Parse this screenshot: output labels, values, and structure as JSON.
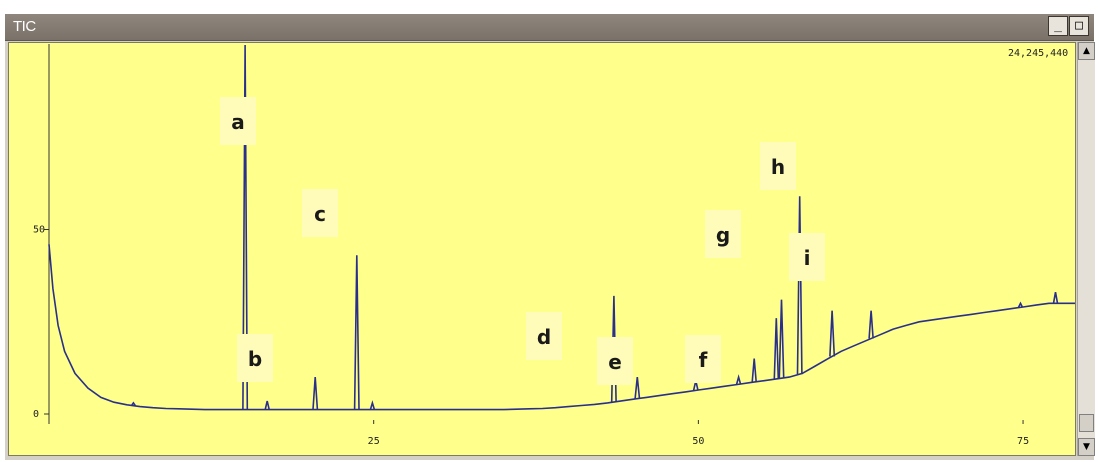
{
  "window": {
    "title": "TIC",
    "buttons": [
      "_",
      "□"
    ],
    "max_intensity_label": "24,245,440"
  },
  "colors": {
    "plot_bg": "#ffff8c",
    "trace": "#2a2f8a",
    "titlebar": "#857d73"
  },
  "chart_data": {
    "type": "line",
    "title": "",
    "xlabel": "",
    "ylabel": "",
    "xlim": [
      0,
      79
    ],
    "ylim": [
      0,
      100
    ],
    "x_ticks": [
      "25",
      "50",
      "75"
    ],
    "y_ticks": [
      "0",
      "50"
    ],
    "grid": false,
    "series": [
      {
        "x": [
          0,
          0.3,
          0.7,
          1.2,
          2,
          3,
          4,
          5,
          6,
          7,
          8,
          9,
          10,
          11,
          12,
          13,
          14,
          15,
          16,
          17,
          18,
          19,
          20,
          21,
          22,
          23,
          24,
          25,
          26,
          27,
          28,
          29,
          30,
          31,
          32,
          33,
          34,
          35,
          36,
          37,
          38,
          39,
          40,
          41,
          42,
          43,
          44,
          45,
          46,
          47,
          48,
          49,
          50,
          51,
          52,
          53,
          54,
          55,
          56,
          57,
          58,
          59,
          60,
          61,
          62,
          63,
          64,
          65,
          66,
          67,
          68,
          69,
          70,
          71,
          72,
          73,
          74,
          75,
          76,
          77,
          78,
          79
        ],
        "y": [
          46,
          34,
          24,
          17,
          11,
          7,
          4.5,
          3.2,
          2.5,
          2,
          1.7,
          1.5,
          1.4,
          1.3,
          1.2,
          1.2,
          1.2,
          1.2,
          1.2,
          1.2,
          1.2,
          1.2,
          1.2,
          1.2,
          1.2,
          1.2,
          1.2,
          1.2,
          1.2,
          1.2,
          1.2,
          1.2,
          1.2,
          1.2,
          1.2,
          1.2,
          1.2,
          1.2,
          1.3,
          1.4,
          1.5,
          1.7,
          2,
          2.3,
          2.6,
          3,
          3.5,
          4,
          4.5,
          5,
          5.5,
          6,
          6.5,
          7,
          7.5,
          8,
          8.5,
          9,
          9.5,
          10,
          11,
          13,
          15,
          17,
          18.5,
          20,
          21.5,
          23,
          24,
          25,
          25.5,
          26,
          26.5,
          27,
          27.5,
          28,
          28.5,
          29,
          29.5,
          30,
          30,
          30
        ]
      }
    ],
    "peaks": [
      {
        "label": "a",
        "x": 15.1,
        "y": 100
      },
      {
        "label": "b",
        "x": 20.5,
        "y": 10
      },
      {
        "label": "c",
        "x": 23.7,
        "y": 43
      },
      {
        "label": "d",
        "x": 43.5,
        "y": 32
      },
      {
        "label": "e",
        "x": 45.3,
        "y": 10
      },
      {
        "label": "f",
        "x": 49.8,
        "y": 9
      },
      {
        "label": "g",
        "x": 56.4,
        "y": 31
      },
      {
        "label": "h",
        "x": 57.8,
        "y": 59
      },
      {
        "label": "i",
        "x": 60.3,
        "y": 28
      }
    ],
    "minor_peaks": [
      {
        "x": 6.5,
        "y": 3
      },
      {
        "x": 16.8,
        "y": 3.5
      },
      {
        "x": 24.9,
        "y": 3
      },
      {
        "x": 53.1,
        "y": 10
      },
      {
        "x": 54.3,
        "y": 15
      },
      {
        "x": 56.0,
        "y": 26
      },
      {
        "x": 63.3,
        "y": 28
      },
      {
        "x": 74.8,
        "y": 30
      },
      {
        "x": 77.5,
        "y": 33
      }
    ]
  }
}
